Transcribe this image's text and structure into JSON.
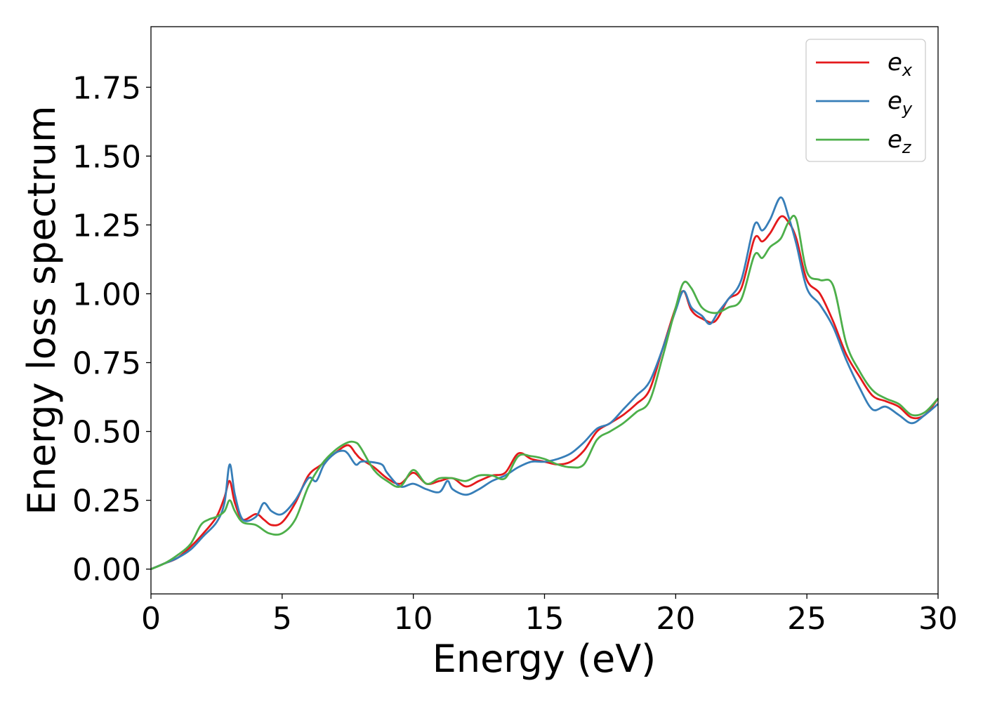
{
  "chart_data": {
    "type": "line",
    "title": "",
    "xlabel": "Energy (eV)",
    "ylabel": "Energy loss spectrum",
    "xlim": [
      0,
      30
    ],
    "ylim": [
      -0.09,
      1.97
    ],
    "xticks": [
      0,
      5,
      10,
      15,
      20,
      25,
      30
    ],
    "xtick_labels": [
      "0",
      "5",
      "10",
      "15",
      "20",
      "25",
      "30"
    ],
    "yticks": [
      0.0,
      0.25,
      0.5,
      0.75,
      1.0,
      1.25,
      1.5,
      1.75
    ],
    "ytick_labels": [
      "0.00",
      "0.25",
      "0.50",
      "0.75",
      "1.00",
      "1.25",
      "1.50",
      "1.75"
    ],
    "grid": false,
    "legend_position": "top-right",
    "series": [
      {
        "name": "e",
        "subscript": "x",
        "color": "#e41a1c",
        "x": [
          0,
          0.5,
          1,
          1.5,
          2,
          2.5,
          2.8,
          3.0,
          3.2,
          3.5,
          4.0,
          4.3,
          4.6,
          5.0,
          5.5,
          6.0,
          6.5,
          7.0,
          7.5,
          7.8,
          8.0,
          8.5,
          9.0,
          9.5,
          10.0,
          10.5,
          11.0,
          11.5,
          12.0,
          12.5,
          13.0,
          13.5,
          14.0,
          14.5,
          15.0,
          15.5,
          16.0,
          16.5,
          17.0,
          17.5,
          18.0,
          18.5,
          19.0,
          19.5,
          20.0,
          20.3,
          20.6,
          21.0,
          21.5,
          22.0,
          22.5,
          23.0,
          23.3,
          23.6,
          24.0,
          24.3,
          24.6,
          25.0,
          25.5,
          26.0,
          26.5,
          27.0,
          27.5,
          28.0,
          28.5,
          29.0,
          29.5,
          30.0
        ],
        "y": [
          0.0,
          0.02,
          0.04,
          0.08,
          0.13,
          0.19,
          0.26,
          0.32,
          0.24,
          0.18,
          0.2,
          0.18,
          0.16,
          0.17,
          0.24,
          0.34,
          0.38,
          0.42,
          0.45,
          0.42,
          0.4,
          0.37,
          0.33,
          0.31,
          0.35,
          0.31,
          0.32,
          0.33,
          0.3,
          0.32,
          0.34,
          0.35,
          0.42,
          0.4,
          0.39,
          0.38,
          0.39,
          0.43,
          0.5,
          0.53,
          0.56,
          0.6,
          0.65,
          0.8,
          0.95,
          1.01,
          0.94,
          0.91,
          0.9,
          0.98,
          1.02,
          1.2,
          1.19,
          1.22,
          1.28,
          1.26,
          1.2,
          1.05,
          1.0,
          0.9,
          0.78,
          0.7,
          0.63,
          0.61,
          0.59,
          0.55,
          0.56,
          0.62
        ]
      },
      {
        "name": "e",
        "subscript": "y",
        "color": "#377eb8",
        "x": [
          0,
          0.5,
          1,
          1.5,
          2,
          2.5,
          2.8,
          3.0,
          3.2,
          3.5,
          4.0,
          4.3,
          4.6,
          5.0,
          5.5,
          6.0,
          6.3,
          6.6,
          7.0,
          7.3,
          7.5,
          7.8,
          8.0,
          8.3,
          8.8,
          9.0,
          9.5,
          10.0,
          10.5,
          11.0,
          11.3,
          11.5,
          12.0,
          12.5,
          13.0,
          13.5,
          14.0,
          14.5,
          15.0,
          15.5,
          16.0,
          16.5,
          17.0,
          17.5,
          18.0,
          18.5,
          19.0,
          19.5,
          20.0,
          20.3,
          20.6,
          21.0,
          21.3,
          21.6,
          22.0,
          22.5,
          23.0,
          23.3,
          23.6,
          24.0,
          24.3,
          24.6,
          25.0,
          25.5,
          26.0,
          26.5,
          27.0,
          27.5,
          28.0,
          28.5,
          29.0,
          29.5,
          30.0
        ],
        "y": [
          0.0,
          0.02,
          0.04,
          0.07,
          0.12,
          0.17,
          0.24,
          0.38,
          0.27,
          0.18,
          0.19,
          0.24,
          0.21,
          0.2,
          0.25,
          0.33,
          0.32,
          0.38,
          0.42,
          0.43,
          0.42,
          0.38,
          0.39,
          0.39,
          0.38,
          0.35,
          0.3,
          0.31,
          0.29,
          0.28,
          0.32,
          0.29,
          0.27,
          0.29,
          0.32,
          0.34,
          0.37,
          0.39,
          0.39,
          0.4,
          0.42,
          0.46,
          0.51,
          0.53,
          0.58,
          0.63,
          0.68,
          0.8,
          0.94,
          1.01,
          0.95,
          0.92,
          0.89,
          0.93,
          0.98,
          1.05,
          1.25,
          1.23,
          1.27,
          1.35,
          1.28,
          1.18,
          1.02,
          0.96,
          0.88,
          0.76,
          0.66,
          0.58,
          0.59,
          0.56,
          0.53,
          0.56,
          0.6
        ]
      },
      {
        "name": "e",
        "subscript": "z",
        "color": "#4daf4a",
        "x": [
          0,
          0.5,
          1,
          1.5,
          1.9,
          2.2,
          2.5,
          2.8,
          3.0,
          3.2,
          3.5,
          4.0,
          4.5,
          5.0,
          5.5,
          6.0,
          6.5,
          7.0,
          7.5,
          7.8,
          8.0,
          8.5,
          9.0,
          9.5,
          10.0,
          10.5,
          11.0,
          11.5,
          12.0,
          12.5,
          13.0,
          13.5,
          14.0,
          14.5,
          15.0,
          15.5,
          16.0,
          16.5,
          17.0,
          17.5,
          18.0,
          18.5,
          19.0,
          19.5,
          20.0,
          20.3,
          20.6,
          21.0,
          21.5,
          22.0,
          22.5,
          23.0,
          23.3,
          23.6,
          24.0,
          24.3,
          24.6,
          25.0,
          25.5,
          26.0,
          26.5,
          27.0,
          27.5,
          28.0,
          28.5,
          29.0,
          29.5,
          30.0
        ],
        "y": [
          0.0,
          0.02,
          0.05,
          0.09,
          0.16,
          0.18,
          0.19,
          0.21,
          0.25,
          0.21,
          0.17,
          0.16,
          0.13,
          0.13,
          0.18,
          0.3,
          0.38,
          0.43,
          0.46,
          0.46,
          0.44,
          0.36,
          0.32,
          0.3,
          0.36,
          0.31,
          0.33,
          0.33,
          0.32,
          0.34,
          0.34,
          0.33,
          0.41,
          0.41,
          0.4,
          0.38,
          0.37,
          0.38,
          0.47,
          0.5,
          0.53,
          0.57,
          0.61,
          0.77,
          0.95,
          1.04,
          1.02,
          0.95,
          0.93,
          0.95,
          0.98,
          1.14,
          1.13,
          1.17,
          1.2,
          1.26,
          1.27,
          1.08,
          1.05,
          1.03,
          0.82,
          0.72,
          0.65,
          0.62,
          0.6,
          0.56,
          0.57,
          0.62
        ]
      }
    ]
  }
}
